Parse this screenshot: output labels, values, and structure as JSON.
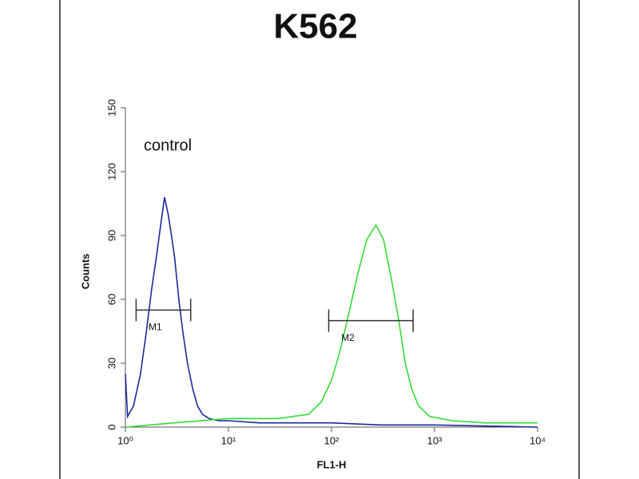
{
  "chart_data": {
    "type": "line",
    "title": "K562",
    "annotation": "control",
    "xlabel": "FL1-H",
    "ylabel": "Counts",
    "xlog": true,
    "xlim": [
      1,
      10000
    ],
    "ylim": [
      0,
      150
    ],
    "xticks": [
      {
        "value": 1,
        "label": "10⁰"
      },
      {
        "value": 10,
        "label": "10¹"
      },
      {
        "value": 100,
        "label": "10²"
      },
      {
        "value": 1000,
        "label": "10³"
      },
      {
        "value": 10000,
        "label": "10⁴"
      }
    ],
    "yticks": [
      0,
      30,
      60,
      90,
      120,
      150
    ],
    "series": [
      {
        "name": "control",
        "color": "#1a2a9c",
        "x": [
          1,
          1.05,
          1.2,
          1.4,
          1.6,
          1.8,
          2.0,
          2.2,
          2.4,
          2.6,
          2.8,
          3.0,
          3.3,
          3.6,
          4.0,
          4.5,
          5.0,
          5.6,
          6.5,
          8,
          10,
          20,
          50,
          100,
          300,
          1000,
          10000
        ],
        "values": [
          25,
          5,
          10,
          25,
          45,
          65,
          80,
          95,
          108,
          100,
          90,
          80,
          60,
          45,
          30,
          18,
          10,
          6,
          4,
          3,
          3,
          2,
          2,
          2,
          1,
          1,
          0
        ]
      },
      {
        "name": "K562",
        "color": "#33dd33",
        "x": [
          1,
          3,
          10,
          30,
          60,
          80,
          100,
          120,
          150,
          180,
          220,
          270,
          320,
          380,
          450,
          520,
          600,
          700,
          900,
          1500,
          3000,
          10000
        ],
        "values": [
          0,
          2,
          4,
          4,
          6,
          12,
          22,
          35,
          55,
          72,
          88,
          95,
          88,
          70,
          50,
          30,
          18,
          10,
          5,
          3,
          2,
          2
        ]
      }
    ],
    "markers": [
      {
        "label": "M1",
        "x": [
          1.27,
          4.3
        ],
        "y": 55
      },
      {
        "label": "M2",
        "x": [
          94,
          620
        ],
        "y": 50
      }
    ]
  }
}
